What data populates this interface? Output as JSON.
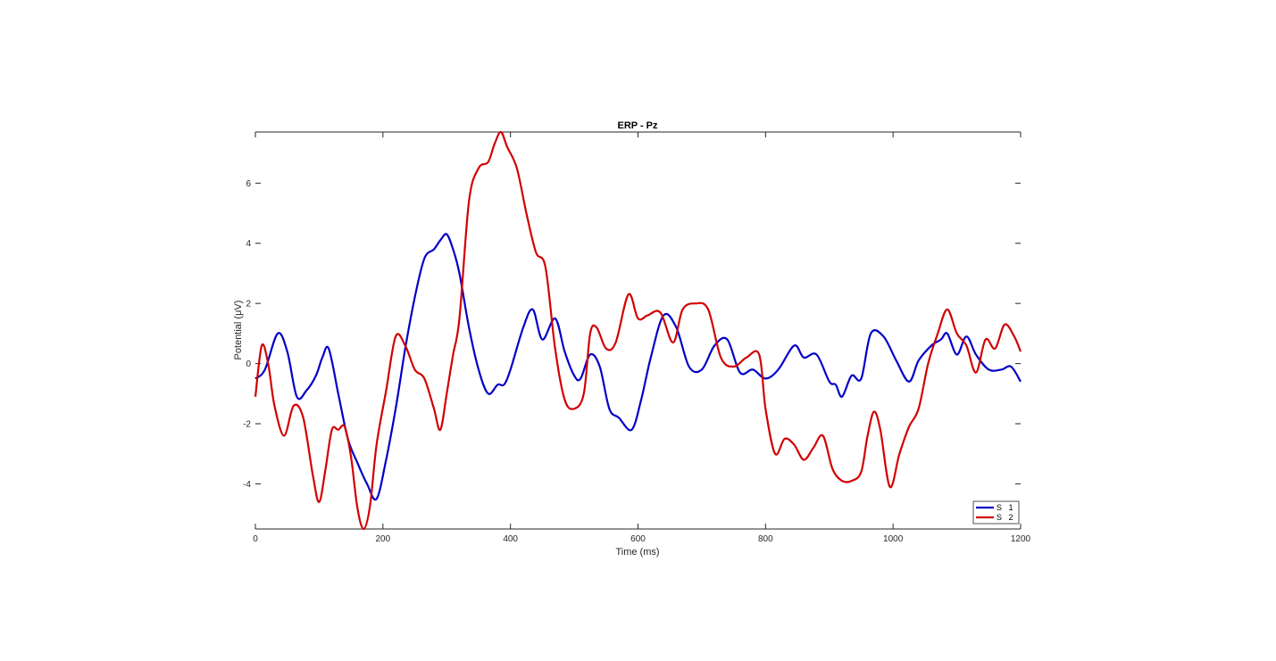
{
  "chart_data": {
    "type": "line",
    "title": "ERP - Pz",
    "xlabel": "Time (ms)",
    "ylabel": "Potential (μV)",
    "xlim": [
      0,
      1200
    ],
    "ylim": [
      -5.5,
      7.7
    ],
    "xticks": [
      0,
      200,
      400,
      600,
      800,
      1000,
      1200
    ],
    "xtick_labels": [
      "0",
      "200",
      "400",
      "600",
      "800",
      "1000",
      "1200"
    ],
    "yticks": [
      -4,
      -2,
      0,
      2,
      4,
      6
    ],
    "ytick_labels": [
      "-4",
      "-2",
      "0",
      "2",
      "4",
      "6"
    ],
    "grid": false,
    "legend_position": "bottom-right",
    "series": [
      {
        "name": "S   1",
        "color": "#0000C8",
        "x": [
          0,
          15,
          35,
          50,
          65,
          80,
          95,
          105,
          115,
          130,
          145,
          160,
          175,
          190,
          205,
          220,
          235,
          250,
          265,
          280,
          290,
          300,
          310,
          320,
          335,
          350,
          365,
          380,
          390,
          400,
          420,
          435,
          450,
          470,
          485,
          500,
          510,
          525,
          540,
          555,
          570,
          590,
          605,
          620,
          640,
          660,
          680,
          700,
          720,
          740,
          760,
          780,
          800,
          820,
          845,
          860,
          880,
          900,
          910,
          920,
          935,
          950,
          965,
          985,
          1005,
          1025,
          1040,
          1060,
          1075,
          1085,
          1100,
          1115,
          1130,
          1150,
          1170,
          1185,
          1200
        ],
        "y": [
          -0.5,
          -0.2,
          1.0,
          0.4,
          -1.1,
          -0.9,
          -0.4,
          0.2,
          0.5,
          -1.0,
          -2.5,
          -3.3,
          -4.0,
          -4.5,
          -3.2,
          -1.5,
          0.5,
          2.2,
          3.5,
          3.8,
          4.1,
          4.3,
          3.8,
          3.0,
          1.2,
          -0.2,
          -1.0,
          -0.7,
          -0.7,
          -0.2,
          1.2,
          1.8,
          0.8,
          1.5,
          0.4,
          -0.4,
          -0.5,
          0.3,
          -0.1,
          -1.5,
          -1.8,
          -2.2,
          -1.2,
          0.2,
          1.6,
          1.2,
          -0.1,
          -0.2,
          0.6,
          0.8,
          -0.3,
          -0.2,
          -0.5,
          -0.2,
          0.6,
          0.2,
          0.3,
          -0.6,
          -0.7,
          -1.1,
          -0.4,
          -0.5,
          1.0,
          0.9,
          0.1,
          -0.6,
          0.1,
          0.6,
          0.8,
          1.0,
          0.3,
          0.9,
          0.3,
          -0.2,
          -0.2,
          -0.1,
          -0.6
        ]
      },
      {
        "name": "S   2",
        "color": "#D20000",
        "x": [
          0,
          10,
          20,
          30,
          45,
          60,
          75,
          90,
          100,
          110,
          120,
          130,
          140,
          150,
          160,
          170,
          180,
          190,
          205,
          220,
          235,
          250,
          265,
          280,
          290,
          300,
          310,
          320,
          335,
          350,
          365,
          375,
          385,
          395,
          410,
          425,
          440,
          455,
          470,
          485,
          500,
          515,
          525,
          535,
          550,
          565,
          585,
          600,
          615,
          635,
          655,
          670,
          690,
          710,
          730,
          750,
          770,
          790,
          800,
          815,
          830,
          845,
          860,
          875,
          890,
          905,
          920,
          935,
          950,
          960,
          970,
          980,
          995,
          1010,
          1025,
          1040,
          1055,
          1070,
          1085,
          1100,
          1115,
          1130,
          1145,
          1160,
          1175,
          1190,
          1200
        ],
        "y": [
          -1.1,
          0.6,
          0.0,
          -1.4,
          -2.4,
          -1.4,
          -1.8,
          -3.7,
          -4.6,
          -3.5,
          -2.2,
          -2.2,
          -2.1,
          -3.1,
          -4.8,
          -5.5,
          -4.7,
          -2.7,
          -0.9,
          0.9,
          0.6,
          -0.2,
          -0.5,
          -1.5,
          -2.2,
          -1.0,
          0.3,
          1.5,
          5.4,
          6.5,
          6.7,
          7.3,
          7.7,
          7.2,
          6.5,
          5.0,
          3.7,
          3.2,
          0.5,
          -1.2,
          -1.5,
          -1.0,
          1.0,
          1.2,
          0.5,
          0.7,
          2.3,
          1.5,
          1.6,
          1.7,
          0.7,
          1.8,
          2.0,
          1.8,
          0.2,
          -0.1,
          0.2,
          0.3,
          -1.5,
          -3.0,
          -2.5,
          -2.7,
          -3.2,
          -2.8,
          -2.4,
          -3.5,
          -3.9,
          -3.9,
          -3.6,
          -2.4,
          -1.6,
          -2.2,
          -4.1,
          -3.0,
          -2.1,
          -1.5,
          0.0,
          1.0,
          1.8,
          1.0,
          0.6,
          -0.3,
          0.8,
          0.5,
          1.3,
          0.9,
          0.4
        ]
      }
    ]
  }
}
